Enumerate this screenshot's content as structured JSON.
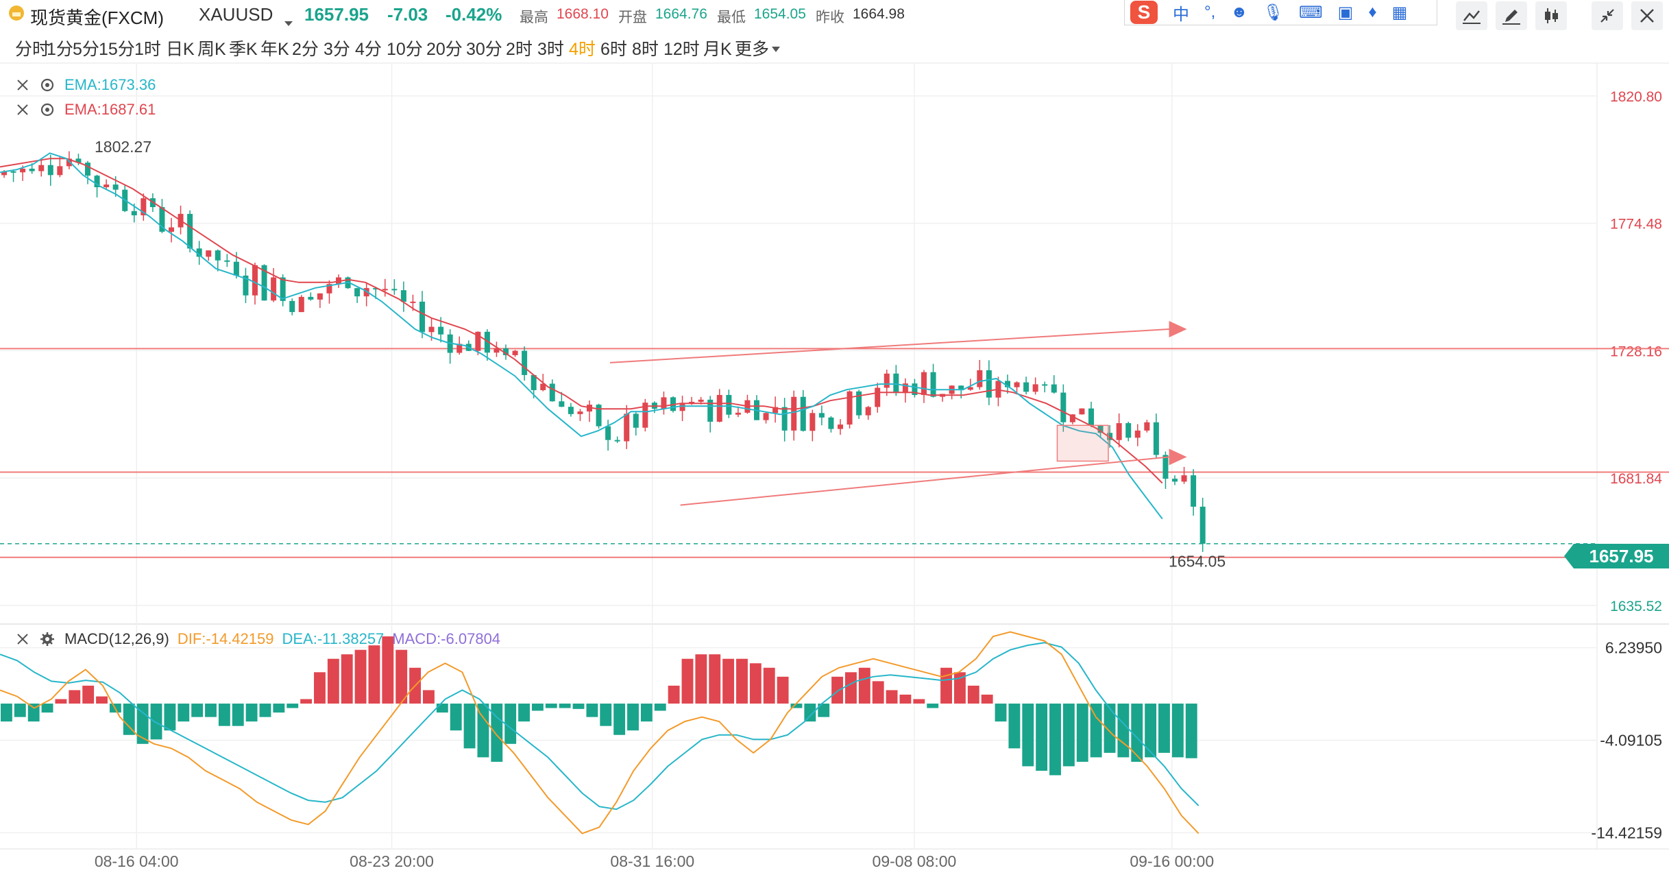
{
  "header": {
    "symbol_name": "现货黄金(FXCM)",
    "symbol_code": "XAUUSD",
    "last_price": "1657.95",
    "change": "-7.03",
    "change_pct": "-0.42%",
    "high_label": "最高",
    "high_value": "1668.10",
    "open_label": "开盘",
    "open_value": "1664.76",
    "low_label": "最低",
    "low_value": "1654.05",
    "prev_close_label": "昨收",
    "prev_close_value": "1664.98"
  },
  "ime_bar": {
    "logo": "S",
    "lang": "中",
    "punct": "°,",
    "icons": [
      "emoji-icon",
      "microphone-icon",
      "keyboard-icon",
      "toolbox-icon",
      "shirt-icon",
      "grid-icon"
    ]
  },
  "toolbar_icons": [
    "line-tool-icon",
    "pencil-icon",
    "candle-type-icon",
    "collapse-icon",
    "close-icon"
  ],
  "periods": [
    "分时",
    "1分",
    "5分",
    "15分",
    "1时",
    "日K",
    "周K",
    "季K",
    "年K",
    "2分",
    "3分",
    "4分",
    "10分",
    "20分",
    "30分",
    "2时",
    "3时",
    "4时",
    "6时",
    "8时",
    "12时",
    "月K",
    "更多"
  ],
  "active_period": "4时",
  "indicators": {
    "ema1": "EMA:1673.36",
    "ema2": "EMA:1687.61",
    "macd_name": "MACD(12,26,9)",
    "dif": "DIF:-14.42159",
    "dea": "DEA:-11.38257",
    "macd": "MACD:-6.07804"
  },
  "colors": {
    "up": "#e0464f",
    "down": "#1aa48c",
    "ema_fast": "#26b6c9",
    "ema_slow": "#e0464f",
    "dif": "#f39a2a",
    "dea": "#26b6c9",
    "macd_label": "#8f6fd8",
    "active_period": "#f5a000",
    "hline": "#f07a7a"
  },
  "chart_data": [
    {
      "type": "candlestick",
      "timeframe": "4时",
      "x_tick_labels": [
        "08-16 04:00",
        "08-23 20:00",
        "08-31 16:00",
        "09-08 08:00",
        "09-16 00:00"
      ],
      "y_tick_labels": [
        "1820.80",
        "1774.48",
        "1728.16",
        "1681.84",
        "1635.52"
      ],
      "ylim": [
        1630,
        1832
      ],
      "max_label": "1802.27",
      "min_label": "1654.05",
      "last_price_tag": "1657.95",
      "horizontal_levels": [
        1728.9,
        1684.0,
        1653.0
      ],
      "trend_lines": [
        {
          "from": [
            0.382,
            1723.8
          ],
          "to": [
            0.732,
            1736.0
          ]
        },
        {
          "from": [
            0.426,
            1672.0
          ],
          "to": [
            0.732,
            1689.5
          ]
        }
      ],
      "box": {
        "x": [
          0.662,
          0.694
        ],
        "y": [
          1688,
          1701
        ]
      },
      "ema_fast": [
        1793,
        1794,
        1796,
        1800,
        1798,
        1792,
        1788,
        1785,
        1781,
        1777,
        1772,
        1768,
        1763,
        1758,
        1756,
        1754,
        1751,
        1747,
        1749,
        1751,
        1752,
        1753,
        1750,
        1746,
        1741,
        1736,
        1733,
        1731,
        1730,
        1727,
        1723,
        1719,
        1713,
        1707,
        1702,
        1697,
        1699,
        1702,
        1706,
        1706,
        1707,
        1708,
        1708,
        1708,
        1708,
        1707,
        1706,
        1705,
        1706,
        1708,
        1712,
        1714,
        1715,
        1716,
        1716,
        1715,
        1714,
        1714,
        1714,
        1717,
        1718,
        1714,
        1709,
        1705,
        1701,
        1699,
        1698,
        1693,
        1683,
        1675,
        1667
      ],
      "ema_slow": [
        1795,
        1796,
        1797,
        1798,
        1798,
        1796,
        1793,
        1790,
        1787,
        1783,
        1779,
        1775,
        1771,
        1767,
        1763,
        1760,
        1757,
        1754,
        1753,
        1753,
        1753,
        1754,
        1753,
        1750,
        1747,
        1743,
        1740,
        1738,
        1736,
        1733,
        1729,
        1725,
        1720,
        1715,
        1712,
        1708,
        1707,
        1707,
        1707,
        1708,
        1708,
        1709,
        1709,
        1709,
        1709,
        1708,
        1708,
        1707,
        1707,
        1708,
        1710,
        1711,
        1712,
        1713,
        1713,
        1713,
        1712,
        1712,
        1712,
        1713,
        1714,
        1713,
        1711,
        1709,
        1706,
        1703,
        1700,
        1696,
        1691,
        1686,
        1680
      ],
      "macd_panel": {
        "y_tick_labels": [
          "6.23950",
          "-4.09105",
          "-14.42159"
        ],
        "ylim": [
          -16,
          8.5
        ],
        "dif": [
          1.5,
          0.8,
          -0.5,
          0.5,
          2.5,
          3.8,
          2.0,
          -1.5,
          -3.5,
          -4.5,
          -5.0,
          -6.0,
          -7.5,
          -8.5,
          -9.5,
          -11.0,
          -12.0,
          -13.0,
          -13.5,
          -12.0,
          -9.0,
          -6.0,
          -3.5,
          -1.0,
          1.5,
          3.5,
          4.5,
          3.5,
          -1.0,
          -3.5,
          -5.5,
          -8.0,
          -10.5,
          -12.5,
          -14.5,
          -13.8,
          -11.0,
          -7.5,
          -5.0,
          -3.0,
          -2.0,
          -1.5,
          -2.0,
          -4.0,
          -5.5,
          -4.0,
          -1.0,
          1.0,
          3.0,
          4.0,
          4.5,
          5.0,
          4.5,
          4.0,
          3.5,
          3.0,
          3.5,
          5.0,
          7.5,
          8.0,
          7.5,
          7.0,
          5.5,
          2.0,
          -1.5,
          -3.5,
          -5.0,
          -7.0,
          -9.5,
          -12.5,
          -14.5
        ],
        "dea": [
          5.5,
          4.8,
          3.5,
          2.5,
          2.3,
          2.6,
          2.4,
          1.2,
          -0.5,
          -2.0,
          -3.0,
          -4.0,
          -5.0,
          -6.0,
          -7.0,
          -8.0,
          -9.0,
          -10.0,
          -10.8,
          -11.0,
          -10.5,
          -9.0,
          -7.5,
          -5.5,
          -3.5,
          -1.5,
          0.5,
          1.5,
          0.5,
          -1.5,
          -3.0,
          -4.5,
          -6.0,
          -8.0,
          -10.0,
          -11.5,
          -11.8,
          -10.8,
          -9.0,
          -7.0,
          -5.5,
          -4.0,
          -3.5,
          -3.5,
          -4.0,
          -4.0,
          -3.5,
          -2.0,
          0.0,
          1.5,
          2.5,
          3.0,
          3.2,
          3.0,
          2.8,
          2.6,
          2.8,
          3.5,
          5.0,
          6.0,
          6.5,
          6.8,
          6.3,
          4.5,
          1.5,
          -1.0,
          -3.0,
          -5.0,
          -7.0,
          -9.5,
          -11.4
        ],
        "hist": [
          -2.0,
          -1.5,
          -2.0,
          -1.0,
          0.5,
          1.5,
          2.0,
          0.8,
          -1.0,
          -3.5,
          -4.5,
          -4.0,
          -3.0,
          -2.0,
          -1.5,
          -1.5,
          -2.5,
          -2.5,
          -2.0,
          -1.5,
          -1.0,
          -0.5,
          0.5,
          3.5,
          5.0,
          5.5,
          6.0,
          6.5,
          7.5,
          6.0,
          4.0,
          1.5,
          -1.0,
          -3.0,
          -5.0,
          -6.0,
          -6.5,
          -4.5,
          -2.0,
          -0.8,
          -0.5,
          -0.5,
          -0.6,
          -1.5,
          -2.5,
          -3.5,
          -3.0,
          -2.0,
          -0.8,
          2.0,
          5.0,
          5.5,
          5.5,
          5.0,
          5.0,
          4.5,
          4.0,
          3.0,
          -0.5,
          -2.0,
          -1.5,
          3.0,
          3.5,
          4.0,
          2.5,
          1.5,
          1.0,
          0.5,
          -0.5,
          4.0,
          3.5,
          2.0,
          1.0,
          -2.0,
          -5.0,
          -7.0,
          -7.5,
          -8.0,
          -7.0,
          -6.5,
          -6.0,
          -5.5,
          -6.0,
          -6.5,
          -6.0,
          -5.5,
          -6.0,
          -6.1
        ]
      },
      "note": "EMA/MACD series sampled evenly across the plot width (left to right); values estimated from the chart."
    }
  ]
}
